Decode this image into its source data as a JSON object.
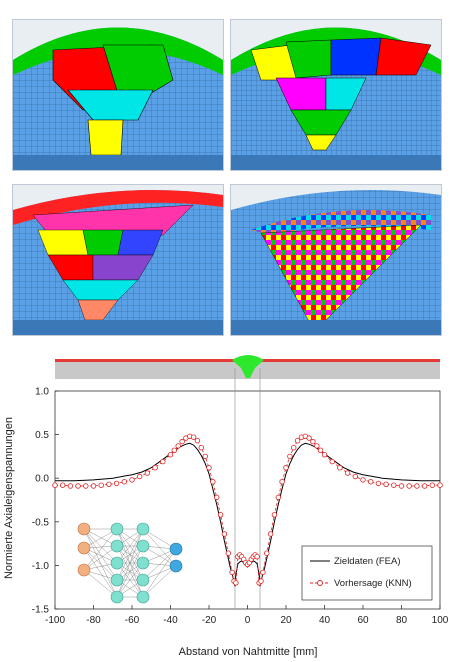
{
  "panels": [
    {
      "name": "mesh-panel-coarse",
      "description_icon": "weld-mesh-icon",
      "bead_colors": [
        "#ffff00",
        "#00e5e5",
        "#ff0000",
        "#00cc00"
      ]
    },
    {
      "name": "mesh-panel-medium",
      "description_icon": "weld-mesh-icon",
      "bead_colors": [
        "#ffff00",
        "#00cc00",
        "#ff00ff",
        "#00e5e5",
        "#0033ff",
        "#ff0000",
        "#00cc00"
      ]
    },
    {
      "name": "mesh-panel-fine",
      "description_icon": "weld-mesh-icon",
      "bead_colors": [
        "#ff8866",
        "#ff33aa",
        "#3344ff",
        "#ffff00",
        "#00cc00",
        "#ff0000",
        "#00e5e5",
        "#8844cc"
      ]
    },
    {
      "name": "mesh-panel-finest",
      "description_icon": "weld-mesh-icon",
      "bead_colors": [
        "#ff0000",
        "#ffff00",
        "#00cc00",
        "#0033ff",
        "#ff00ff",
        "#00e5e5",
        "#ff8800",
        "#8844cc"
      ]
    }
  ],
  "colors": {
    "base_metal": "#5aa0e6",
    "mesh_line": "#2a5a8a",
    "weld_top": "#e53935",
    "weld_profile": "#2ee82e",
    "plate_profile": "#c8c8c8",
    "fea_line": "#000000",
    "knn_line": "#e02020"
  },
  "chart_data": {
    "type": "line",
    "xlabel": "Abstand von Nahtmitte [mm]",
    "ylabel": "Normierte Axialeigenspannungen",
    "xlim": [
      -100,
      100
    ],
    "ylim": [
      -1.5,
      1.0
    ],
    "xticks": [
      -100,
      -80,
      -60,
      -40,
      -20,
      0,
      20,
      40,
      60,
      80,
      100
    ],
    "yticks": [
      1.0,
      0.5,
      0.0,
      -0.5,
      -1.0,
      -1.5
    ],
    "xtick_labels": [
      "-100",
      "-80",
      "-60",
      "-40",
      "-20",
      "0",
      "20",
      "40",
      "60",
      "80",
      "100"
    ],
    "ytick_labels": [
      "1.0",
      "0.5",
      "0.0",
      "-0.5",
      "-1.0",
      "-1.5"
    ],
    "grid": false,
    "legend_position": "bottom-right",
    "weld_zone_lines": [
      -6.5,
      6.5
    ],
    "series": [
      {
        "name": "Zieldaten (FEA)",
        "color": "#000000",
        "marker": "none",
        "x": [
          -100,
          -90,
          -80,
          -70,
          -60,
          -55,
          -50,
          -45,
          -40,
          -35,
          -32,
          -30,
          -28,
          -26,
          -24,
          -22,
          -20,
          -18,
          -16,
          -14,
          -12,
          -10,
          -9,
          -8,
          -7,
          -6.5,
          -6,
          -5,
          -4,
          -3,
          -2,
          -1,
          0,
          1,
          2,
          3,
          4,
          5,
          6,
          6.5,
          7,
          8,
          9,
          10,
          12,
          14,
          16,
          18,
          20,
          22,
          24,
          26,
          28,
          30,
          32,
          35,
          40,
          45,
          50,
          55,
          60,
          70,
          80,
          90,
          100
        ],
        "y": [
          -0.03,
          -0.03,
          -0.02,
          0.0,
          0.04,
          0.07,
          0.12,
          0.2,
          0.28,
          0.36,
          0.39,
          0.4,
          0.38,
          0.33,
          0.26,
          0.17,
          0.05,
          -0.12,
          -0.3,
          -0.5,
          -0.72,
          -0.92,
          -1.02,
          -1.1,
          -1.18,
          -1.24,
          -1.1,
          -0.98,
          -0.96,
          -0.95,
          -0.97,
          -1.0,
          -1.02,
          -1.0,
          -0.97,
          -0.95,
          -0.96,
          -0.98,
          -1.1,
          -1.24,
          -1.18,
          -1.1,
          -1.02,
          -0.92,
          -0.72,
          -0.5,
          -0.3,
          -0.12,
          0.05,
          0.17,
          0.26,
          0.33,
          0.38,
          0.4,
          0.39,
          0.36,
          0.28,
          0.2,
          0.12,
          0.07,
          0.04,
          0.0,
          -0.02,
          -0.03,
          -0.03
        ]
      },
      {
        "name": "Vorhersage (KNN)",
        "color": "#e02020",
        "marker": "circle",
        "x": [
          -100,
          -96,
          -92,
          -88,
          -84,
          -80,
          -76,
          -72,
          -68,
          -64,
          -60,
          -56,
          -52,
          -48,
          -44,
          -40,
          -38,
          -36,
          -34,
          -32,
          -30,
          -28,
          -26,
          -24,
          -22,
          -20,
          -18,
          -16,
          -14,
          -12,
          -10,
          -8,
          -7,
          -6,
          -5,
          -4,
          -3,
          -2,
          -1,
          0,
          1,
          2,
          3,
          4,
          5,
          6,
          7,
          8,
          10,
          12,
          14,
          16,
          18,
          20,
          22,
          24,
          26,
          28,
          30,
          32,
          34,
          36,
          38,
          40,
          44,
          48,
          52,
          56,
          60,
          64,
          68,
          72,
          76,
          80,
          84,
          88,
          92,
          96,
          100
        ],
        "y": [
          -0.08,
          -0.08,
          -0.09,
          -0.09,
          -0.09,
          -0.09,
          -0.08,
          -0.07,
          -0.06,
          -0.04,
          -0.02,
          0.02,
          0.06,
          0.12,
          0.19,
          0.27,
          0.32,
          0.37,
          0.42,
          0.46,
          0.48,
          0.47,
          0.43,
          0.35,
          0.25,
          0.12,
          -0.04,
          -0.22,
          -0.42,
          -0.64,
          -0.86,
          -1.08,
          -1.18,
          -1.2,
          -0.9,
          -0.88,
          -0.9,
          -0.93,
          -0.97,
          -0.99,
          -0.97,
          -0.93,
          -0.9,
          -0.88,
          -0.9,
          -1.2,
          -1.18,
          -1.08,
          -0.86,
          -0.64,
          -0.42,
          -0.22,
          -0.04,
          0.12,
          0.25,
          0.35,
          0.43,
          0.47,
          0.48,
          0.46,
          0.42,
          0.37,
          0.32,
          0.27,
          0.19,
          0.12,
          0.06,
          0.02,
          -0.02,
          -0.04,
          -0.06,
          -0.07,
          -0.08,
          -0.09,
          -0.09,
          -0.09,
          -0.09,
          -0.08,
          -0.08
        ]
      }
    ]
  }
}
